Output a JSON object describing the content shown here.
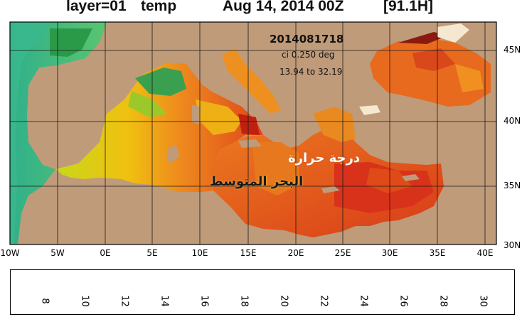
{
  "title": {
    "layer": "layer=01",
    "variable": "temp",
    "date": "Aug 14, 2014 00Z",
    "forecast": "[91.1H]"
  },
  "overlay": {
    "run": "2014081718",
    "ci": "ci 0.250 deg",
    "range": "13.94 to 32.19"
  },
  "annotations": {
    "arabic_line1": "درجة حرارة",
    "arabic_line2": "البحر المتوسط"
  },
  "axes": {
    "lat_labels": [
      "45N",
      "40N",
      "35N",
      "30N"
    ],
    "lon_labels": [
      "10W",
      "5W",
      "0E",
      "5E",
      "10E",
      "15E",
      "20E",
      "25E",
      "30E",
      "35E",
      "40E"
    ]
  },
  "colorbar": {
    "ticks": [
      "8",
      "10",
      "12",
      "14",
      "16",
      "18",
      "20",
      "22",
      "24",
      "26",
      "28",
      "30"
    ],
    "min": 7,
    "max": 31
  },
  "colors": {
    "land": "#bf9b7a",
    "water_cold": "#2fb58a",
    "water_mid": "#e6d800",
    "water_warm": "#e8661a",
    "water_hot": "#d63a1a",
    "grid": "#1a1a1a"
  }
}
